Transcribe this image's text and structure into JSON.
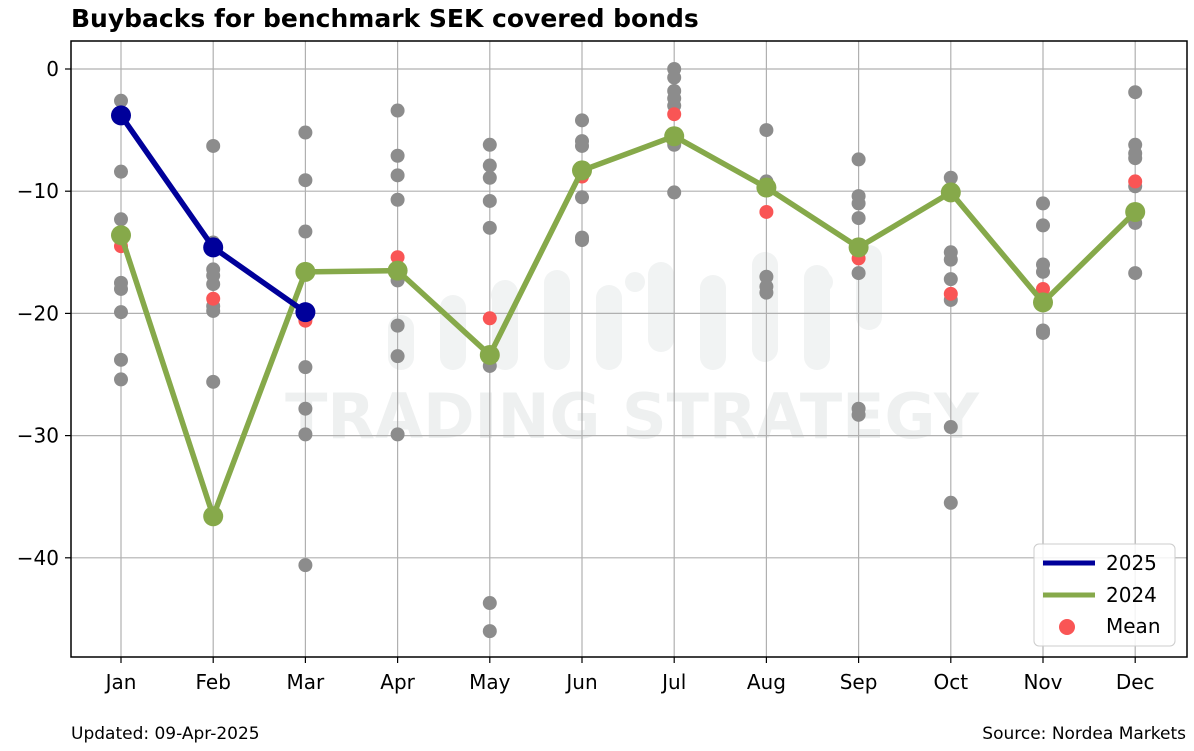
{
  "chart_data": {
    "type": "line",
    "title": "Buybacks for benchmark SEK covered bonds",
    "xlabel": "",
    "ylabel": "",
    "categories": [
      "Jan",
      "Feb",
      "Mar",
      "Apr",
      "May",
      "Jun",
      "Jul",
      "Aug",
      "Sep",
      "Oct",
      "Nov",
      "Dec"
    ],
    "ylim": [
      -48.5,
      2.3
    ],
    "yticks": [
      0,
      -10,
      -20,
      -30,
      -40
    ],
    "ytick_labels": [
      "0",
      "−10",
      "−20",
      "−30",
      "−40"
    ],
    "grid": true,
    "legend_position": "bottom-right",
    "historical": [
      [
        -2.6,
        -8.4,
        -12.3,
        -17.5,
        -18.0,
        -19.9,
        -23.8,
        -25.4
      ],
      [
        -6.3,
        -14.2,
        -16.4,
        -16.9,
        -17.6,
        -19.4,
        -19.8,
        -25.6
      ],
      [
        -5.2,
        -9.1,
        -13.3,
        -19.8,
        -24.4,
        -27.8,
        -29.9,
        -40.6
      ],
      [
        -3.4,
        -7.1,
        -8.7,
        -10.7,
        -16.6,
        -17.3,
        -21.0,
        -23.5,
        -29.9
      ],
      [
        -6.2,
        -7.9,
        -8.9,
        -10.8,
        -13.0,
        -23.4,
        -24.3,
        -43.7,
        -46.0
      ],
      [
        -4.2,
        -5.9,
        -6.3,
        -10.5,
        -13.8,
        -14.0
      ],
      [
        0.0,
        -0.7,
        -1.8,
        -2.4,
        -3.0,
        -5.3,
        -6.2,
        -10.1
      ],
      [
        -5.0,
        -9.2,
        -9.5,
        -17.0,
        -17.8,
        -18.3
      ],
      [
        -7.4,
        -10.4,
        -11.0,
        -12.2,
        -16.7,
        -27.8,
        -28.3
      ],
      [
        -8.9,
        -15.0,
        -15.6,
        -17.2,
        -18.9,
        -29.3,
        -35.5
      ],
      [
        -11.0,
        -12.8,
        -16.0,
        -16.6,
        -21.4,
        -21.6
      ],
      [
        -1.9,
        -6.2,
        -6.9,
        -7.3,
        -9.6,
        -12.6,
        -16.7
      ]
    ],
    "series": [
      {
        "name": "2025",
        "color": "#00009a",
        "values": [
          -3.8,
          -14.6,
          -19.9,
          null,
          null,
          null,
          null,
          null,
          null,
          null,
          null,
          null
        ]
      },
      {
        "name": "2024",
        "color": "#86a94a",
        "values": [
          -13.6,
          -36.6,
          -16.6,
          -16.5,
          -23.4,
          -8.3,
          -5.5,
          -9.7,
          -14.6,
          -10.1,
          -19.1,
          -11.7
        ]
      },
      {
        "name": "Mean",
        "color": "#f95555",
        "values": [
          -14.5,
          -18.8,
          -20.6,
          -15.4,
          -20.4,
          -8.8,
          -3.7,
          -11.7,
          -15.5,
          -18.4,
          -18.0,
          -9.2
        ]
      }
    ],
    "historical_color": "#8c8c8c",
    "watermark": "TRADING STRATEGY"
  },
  "footer": {
    "updated": "Updated: 09-Apr-2025",
    "source": "Source: Nordea Markets"
  }
}
